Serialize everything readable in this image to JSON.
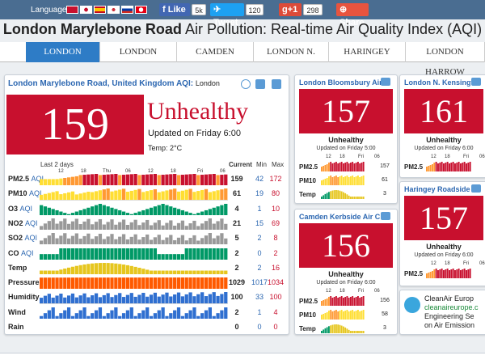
{
  "topbar": {
    "language_label": "Language:",
    "like_label": "Like",
    "like_count": "5k",
    "tweet_label": "Tweet",
    "tweet_count": "120",
    "gplus_label": "g+1",
    "gplus_count": "298",
    "share_label": "Share"
  },
  "page": {
    "title_bold": "London Marylebone Road",
    "title_rest": " Air Pollution: Real-time Air Quality Index (AQI)"
  },
  "tabs": [
    "LONDON",
    "LONDON",
    "CAMDEN",
    "LONDON N.",
    "HARINGEY",
    "LONDON HARROW"
  ],
  "colors": {
    "unhealthy": "#c8102e",
    "good": "#009966",
    "moderate": "#ffde33",
    "usg": "#ff9933",
    "temp": "#e6c61e",
    "pressure": "#ff5a00",
    "humidity": "#2f6fd0",
    "wind": "#2f6fd0",
    "grey": "#999999",
    "accent": "#2c67b1"
  },
  "main": {
    "title": "London Marylebone Road, United Kingdom AQI:",
    "title_suffix": "London",
    "aqi": "159",
    "status": "Unhealthy",
    "updated": "Updated on Friday 6:00",
    "temp": "Temp: 2°C",
    "chart_caption": "Last 2 days",
    "time_ticks": [
      "12",
      "18",
      "Thu",
      "06",
      "12",
      "18",
      "Fri",
      "06"
    ],
    "col_current": "Current",
    "col_min": "Min",
    "col_max": "Max",
    "rows": [
      {
        "name": "PM2.5",
        "aqi_tag": "AQI",
        "current": "159",
        "min": "42",
        "max": "172",
        "type": "aqi"
      },
      {
        "name": "PM10",
        "aqi_tag": "AQI",
        "current": "61",
        "min": "19",
        "max": "80",
        "type": "aqi"
      },
      {
        "name": "O3",
        "aqi_tag": "AQI",
        "current": "4",
        "min": "1",
        "max": "10",
        "type": "o3"
      },
      {
        "name": "NO2",
        "aqi_tag": "AQI",
        "current": "21",
        "min": "15",
        "max": "69",
        "type": "grey"
      },
      {
        "name": "SO2",
        "aqi_tag": "AQI",
        "current": "5",
        "min": "2",
        "max": "8",
        "type": "grey"
      },
      {
        "name": "CO",
        "aqi_tag": "AQI",
        "current": "2",
        "min": "0",
        "max": "2",
        "type": "co"
      },
      {
        "name": "Temp",
        "aqi_tag": "",
        "current": "2",
        "min": "2",
        "max": "16",
        "type": "temp"
      },
      {
        "name": "Pressure",
        "aqi_tag": "",
        "current": "1029",
        "min": "1017",
        "max": "1034",
        "type": "pressure"
      },
      {
        "name": "Humidity",
        "aqi_tag": "",
        "current": "100",
        "min": "33",
        "max": "100",
        "type": "humidity"
      },
      {
        "name": "Wind",
        "aqi_tag": "",
        "current": "2",
        "min": "1",
        "max": "4",
        "type": "wind"
      },
      {
        "name": "Rain",
        "aqi_tag": "",
        "current": "0",
        "min": "0",
        "max": "0",
        "type": "rain"
      }
    ]
  },
  "stations": [
    {
      "title": "London Bloomsbury Air",
      "aqi": "157",
      "status": "Unhealthy",
      "updated": "Updated on Friday 5:00",
      "ticks": [
        "12",
        "18",
        "Fri",
        "06"
      ],
      "rows": [
        {
          "name": "PM2.5",
          "value": "157"
        },
        {
          "name": "PM10",
          "value": "61"
        },
        {
          "name": "Temp",
          "value": "3"
        }
      ]
    },
    {
      "title": "London N. Kensington",
      "aqi": "161",
      "status": "Unhealthy",
      "updated": "Updated on Friday 6:00",
      "ticks": [
        "12",
        "18",
        "Fri",
        "06"
      ],
      "rows": [
        {
          "name": "PM2.5",
          "value": ""
        }
      ]
    },
    {
      "title": "Camden Kerbside Air C",
      "aqi": "156",
      "status": "Unhealthy",
      "updated": "Updated on Friday 6:00",
      "ticks": [
        "12",
        "18",
        "Fri",
        "06"
      ],
      "rows": [
        {
          "name": "PM2.5",
          "value": "156"
        },
        {
          "name": "PM10",
          "value": "58"
        },
        {
          "name": "Temp",
          "value": "3"
        }
      ]
    },
    {
      "title": "Haringey Roadside Air",
      "aqi": "157",
      "status": "Unhealthy",
      "updated": "Updated on Friday 6:00",
      "ticks": [
        "12",
        "18",
        "Fri",
        "06"
      ],
      "rows": [
        {
          "name": "PM2.5",
          "value": ""
        }
      ]
    }
  ],
  "ad": {
    "line1": "CleanAir Europ",
    "line2": "cleanaireurope.c",
    "line3": "Engineering Se",
    "line4": "on Air Emission"
  }
}
